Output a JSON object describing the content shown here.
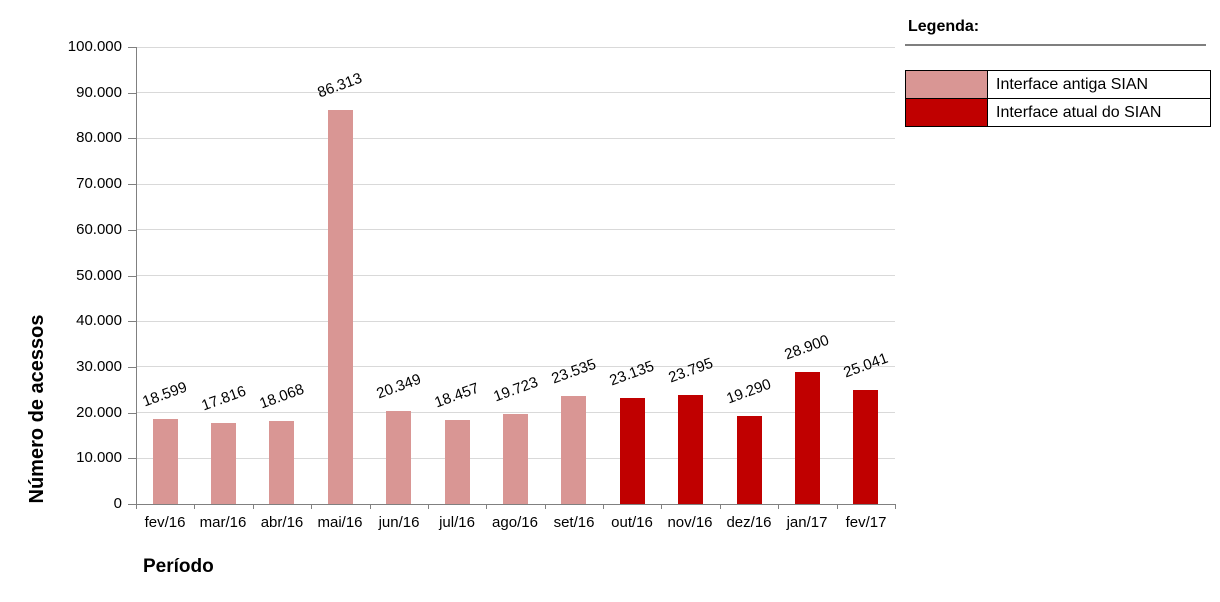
{
  "chart_data": {
    "type": "bar",
    "title": "",
    "xlabel": "Período",
    "ylabel": "Número de acessos",
    "ylim": [
      0,
      100000
    ],
    "ytick_step": 10000,
    "ytick_labels": [
      "0",
      "10.000",
      "20.000",
      "30.000",
      "40.000",
      "50.000",
      "60.000",
      "70.000",
      "80.000",
      "90.000",
      "100.000"
    ],
    "grid": true,
    "legend_position": "top-right",
    "categories": [
      "fev/16",
      "mar/16",
      "abr/16",
      "mai/16",
      "jun/16",
      "jul/16",
      "ago/16",
      "set/16",
      "out/16",
      "nov/16",
      "dez/16",
      "jan/17",
      "fev/17"
    ],
    "values": [
      18599,
      17816,
      18068,
      86313,
      20349,
      18457,
      19723,
      23535,
      23135,
      23795,
      19290,
      28900,
      25041
    ],
    "value_labels": [
      "18.599",
      "17.816",
      "18.068",
      "86.313",
      "20.349",
      "18.457",
      "19.723",
      "23.535",
      "23.135",
      "23.795",
      "19.290",
      "28.900",
      "25.041"
    ],
    "bar_groups": [
      "antiga",
      "antiga",
      "antiga",
      "antiga",
      "antiga",
      "antiga",
      "antiga",
      "antiga",
      "atual",
      "atual",
      "atual",
      "atual",
      "atual"
    ],
    "colors": {
      "antiga": "#D99694",
      "atual": "#C00000",
      "gridline": "#D9D9D9",
      "axis": "#808080"
    }
  },
  "legend": {
    "title": "Legenda:",
    "entries": [
      {
        "label": "Interface antiga SIAN",
        "color": "#D99694",
        "key": "antiga"
      },
      {
        "label": "Interface atual do SIAN",
        "color": "#C00000",
        "key": "atual"
      }
    ]
  }
}
